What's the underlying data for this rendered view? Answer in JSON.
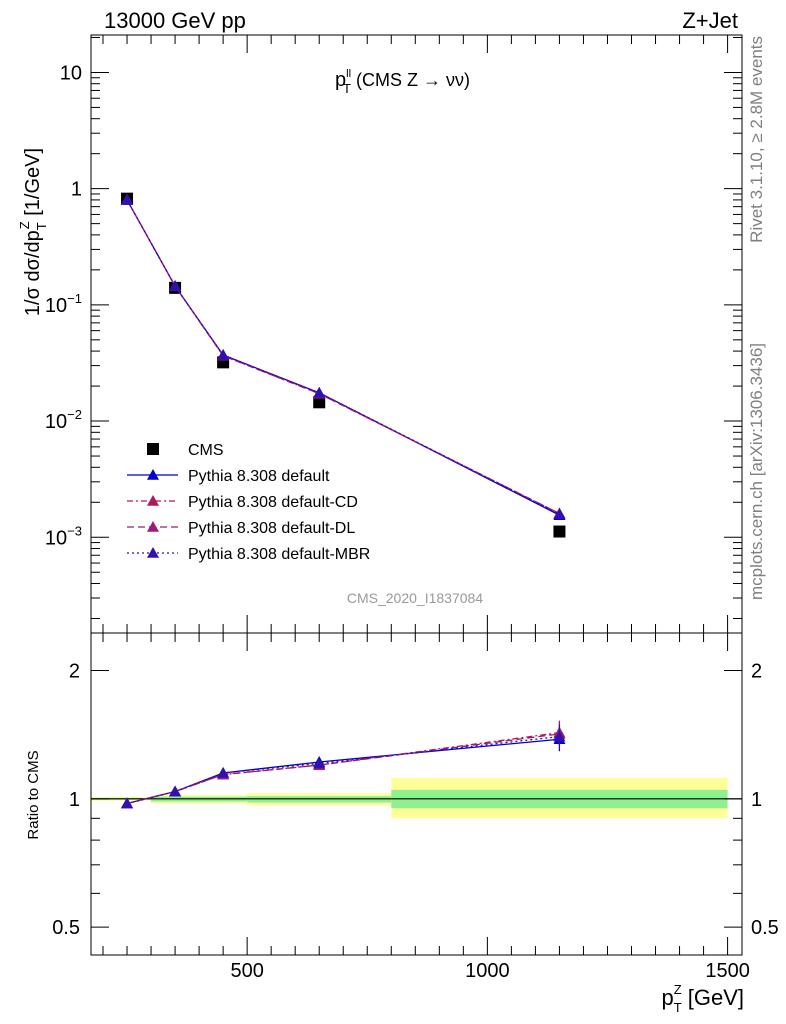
{
  "header": {
    "left": "13000 GeV pp",
    "right": "Z+Jet"
  },
  "plot_title": {
    "main": "p",
    "sup": "ll",
    "sub": "T",
    "rest": " (CMS Z → νν)"
  },
  "side_label_top": "Rivet 3.1.10, ≥ 2.8M events",
  "side_label_bottom": "mcplots.cern.ch [arXiv:1306.3436]",
  "watermark": "CMS_2020_I1837084",
  "ylabel_main": "1/σ dσ/dp_T^Z [1/GeV]",
  "ylabel_ratio": "Ratio to CMS",
  "xlabel": {
    "main": "p",
    "sup": "Z",
    "sub": "T",
    "rest": " [GeV]"
  },
  "chart_data": [
    {
      "type": "line",
      "panel": "main",
      "y_scale": "log",
      "xlim": [
        175,
        1530
      ],
      "ylim": [
        0.00015,
        21
      ],
      "x_tick_labels": [
        "500",
        "1000",
        "1500"
      ],
      "y_tick_labels": [
        {
          "value": 10,
          "mant": "10",
          "exp": ""
        },
        {
          "value": 1,
          "mant": "1",
          "exp": ""
        },
        {
          "value": 0.1,
          "mant": "10",
          "exp": "−1"
        },
        {
          "value": 0.01,
          "mant": "10",
          "exp": "−2"
        },
        {
          "value": 0.001,
          "mant": "10",
          "exp": "−3"
        }
      ],
      "x": [
        250,
        350,
        450,
        650,
        1150
      ],
      "series": [
        {
          "name": "CMS",
          "style": "data",
          "color": "#000000",
          "values": [
            0.82,
            0.14,
            0.032,
            0.0145,
            0.00112
          ]
        },
        {
          "name": "Pythia 8.308 default",
          "style": "solid",
          "color": "#0000cc",
          "values": [
            0.8,
            0.145,
            0.037,
            0.0175,
            0.00155
          ]
        },
        {
          "name": "Pythia 8.308 default-CD",
          "style": "dashdot",
          "color": "#b0185a",
          "values": [
            0.8,
            0.145,
            0.0365,
            0.0172,
            0.0016
          ]
        },
        {
          "name": "Pythia 8.308 default-DL",
          "style": "dash",
          "color": "#a0187a",
          "values": [
            0.8,
            0.145,
            0.0365,
            0.0172,
            0.0016
          ]
        },
        {
          "name": "Pythia 8.308 default-MBR",
          "style": "dot",
          "color": "#3010b0",
          "values": [
            0.8,
            0.145,
            0.037,
            0.0175,
            0.00158
          ]
        }
      ],
      "legend": "bottom-left"
    },
    {
      "type": "line",
      "panel": "ratio",
      "y_scale": "log",
      "xlim": [
        175,
        1530
      ],
      "ylim": [
        0.43,
        2.45
      ],
      "y_tick_labels": [
        "2",
        "1",
        "0.5"
      ],
      "x": [
        250,
        350,
        450,
        650,
        1150
      ],
      "bands": [
        {
          "x0": 175,
          "x1": 300,
          "inner": [
            0.995,
            1.005
          ],
          "outer": [
            0.99,
            1.01
          ]
        },
        {
          "x0": 300,
          "x1": 500,
          "inner": [
            0.985,
            1.012
          ],
          "outer": [
            0.975,
            1.02
          ]
        },
        {
          "x0": 500,
          "x1": 800,
          "inner": [
            0.98,
            1.015
          ],
          "outer": [
            0.965,
            1.03
          ]
        },
        {
          "x0": 800,
          "x1": 1500,
          "inner": [
            0.95,
            1.05
          ],
          "outer": [
            0.9,
            1.12
          ]
        }
      ],
      "series": [
        {
          "name": "Pythia 8.308 default",
          "style": "solid",
          "color": "#0000cc",
          "values": [
            0.975,
            1.04,
            1.15,
            1.22,
            1.38
          ]
        },
        {
          "name": "Pythia 8.308 default-CD",
          "style": "dashdot",
          "color": "#b0185a",
          "values": [
            0.975,
            1.04,
            1.14,
            1.2,
            1.43
          ]
        },
        {
          "name": "Pythia 8.308 default-DL",
          "style": "dash",
          "color": "#a0187a",
          "values": [
            0.975,
            1.04,
            1.14,
            1.2,
            1.42
          ]
        },
        {
          "name": "Pythia 8.308 default-MBR",
          "style": "dot",
          "color": "#3010b0",
          "values": [
            0.975,
            1.04,
            1.15,
            1.21,
            1.4
          ]
        }
      ]
    }
  ],
  "colors": {
    "band_inner": "#90f090",
    "band_outer": "#ffff99"
  }
}
